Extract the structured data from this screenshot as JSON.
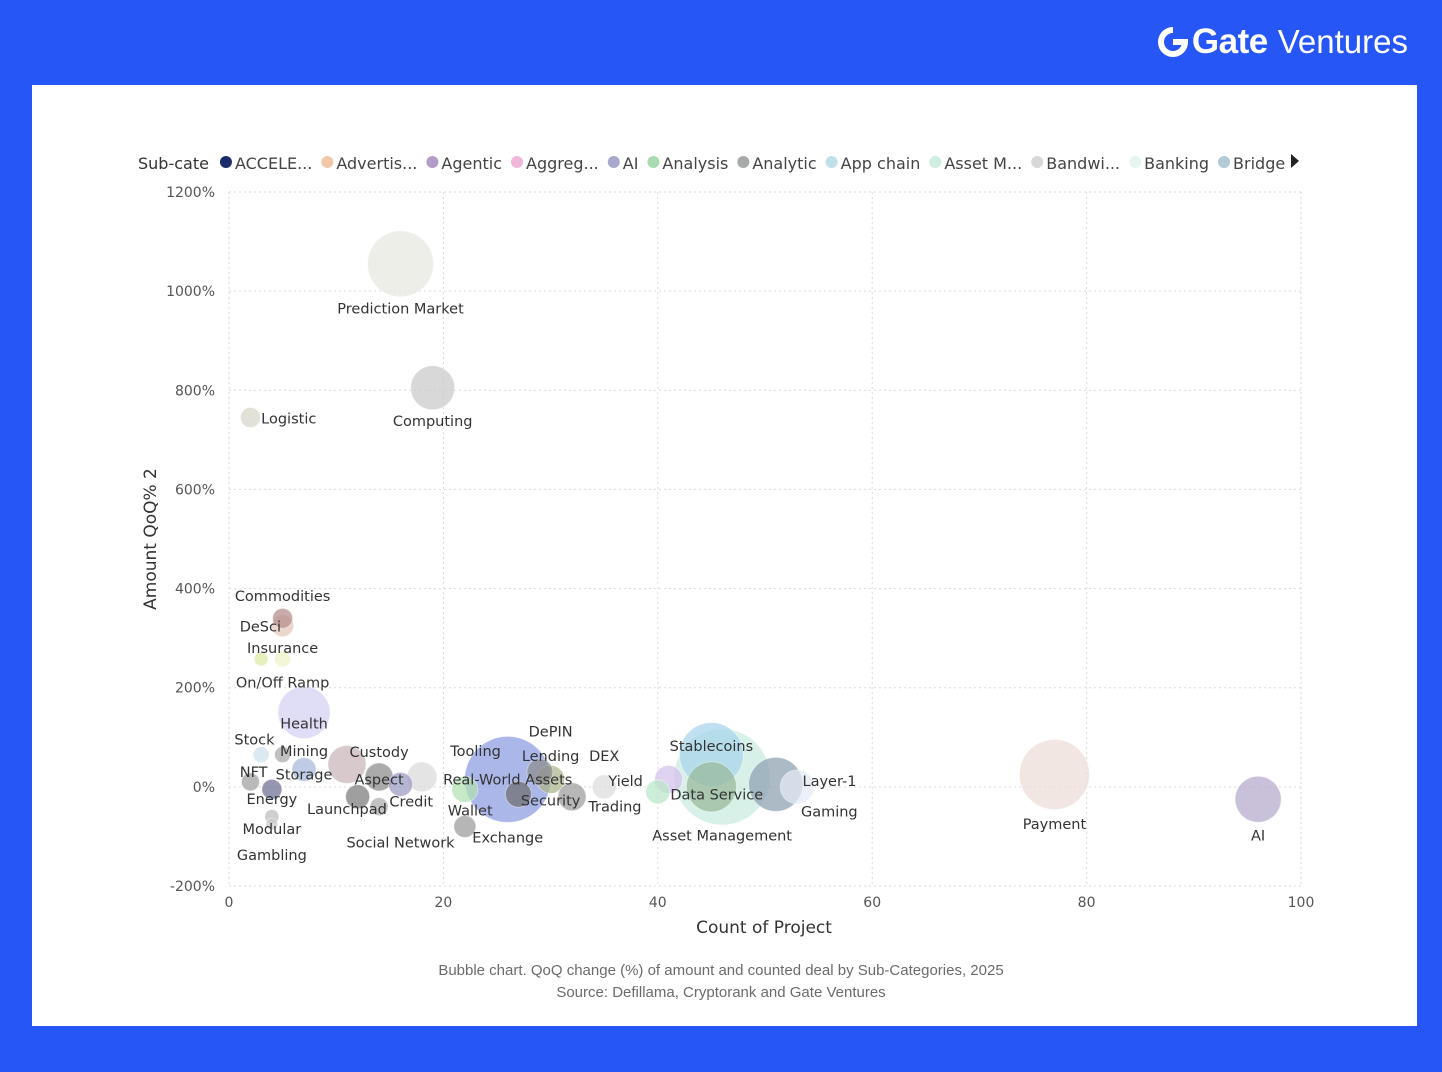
{
  "brand": {
    "name": "Gate",
    "sub": "Ventures"
  },
  "caption": {
    "line1": "Bubble chart. QoQ change (%) of amount and counted deal by Sub-Categories, 2025",
    "line2": "Source: Defillama, Cryptorank and Gate Ventures"
  },
  "chart_data": {
    "type": "scatter",
    "xlabel": "Count of Project",
    "ylabel": "Amount QoQ% 2",
    "xlim": [
      0,
      100
    ],
    "ylim": [
      -200,
      1200
    ],
    "xticks": [
      "0",
      "20",
      "40",
      "60",
      "80",
      "100"
    ],
    "yticks": [
      "-200%",
      "0%",
      "200%",
      "400%",
      "600%",
      "800%",
      "1000%",
      "1200%"
    ],
    "grid": true,
    "legend": {
      "title": "Sub-cate",
      "placement": "top",
      "items": [
        {
          "label": "ACCELE...",
          "color": "#1c2b6b"
        },
        {
          "label": "Advertis...",
          "color": "#f2c9a8"
        },
        {
          "label": "Agentic",
          "color": "#b39cc9"
        },
        {
          "label": "Aggreg...",
          "color": "#f0b8d8"
        },
        {
          "label": "AI",
          "color": "#a8a8cc"
        },
        {
          "label": "Analysis",
          "color": "#a8dcb0"
        },
        {
          "label": "Analytic",
          "color": "#a7aaa8"
        },
        {
          "label": "App chain",
          "color": "#bfe0ea"
        },
        {
          "label": "Asset M...",
          "color": "#cdeee0"
        },
        {
          "label": "Bandwi...",
          "color": "#d8d8d8"
        },
        {
          "label": "Banking",
          "color": "#e6f5ee"
        },
        {
          "label": "Bridge",
          "color": "#b4cad6"
        }
      ]
    },
    "points": [
      {
        "label": "Prediction Market",
        "x": 16,
        "y": 1055,
        "size": 33,
        "color": "#e7e7e0"
      },
      {
        "label": "Computing",
        "x": 19,
        "y": 805,
        "size": 22,
        "color": "#c9c9c9"
      },
      {
        "label": "Logistic",
        "x": 2,
        "y": 745,
        "size": 10,
        "color": "#d6d6c8"
      },
      {
        "label": "Commodities",
        "x": 5,
        "y": 340,
        "size": 10,
        "color": "#b58c8c"
      },
      {
        "label": "DeSci",
        "x": 5,
        "y": 325,
        "size": 11,
        "color": "#e2c6b6"
      },
      {
        "label": "Insurance",
        "x": 3,
        "y": 258,
        "size": 7,
        "color": "#ddeaa6"
      },
      {
        "label": "On/Off Ramp",
        "x": 5,
        "y": 258,
        "size": 8,
        "color": "#eef3c8"
      },
      {
        "label": "Health",
        "x": 7,
        "y": 150,
        "size": 26,
        "color": "#d4d0f2"
      },
      {
        "label": "Stock",
        "x": 3,
        "y": 65,
        "size": 8,
        "color": "#cfe0ea"
      },
      {
        "label": "Mining",
        "x": 5,
        "y": 65,
        "size": 8,
        "color": "#a8a8a8"
      },
      {
        "label": "Custody",
        "x": 11,
        "y": 45,
        "size": 19,
        "color": "#c8b4b8"
      },
      {
        "label": "NFT",
        "x": 2,
        "y": 10,
        "size": 9,
        "color": "#9f9f9f"
      },
      {
        "label": "Storage",
        "x": 7,
        "y": 35,
        "size": 12,
        "color": "#a7b8dc"
      },
      {
        "label": "Aspect",
        "x": 14,
        "y": 20,
        "size": 14,
        "color": "#8a8a8a"
      },
      {
        "label": "Energy",
        "x": 4,
        "y": -5,
        "size": 10,
        "color": "#6e6e96"
      },
      {
        "label": "Launchpad",
        "x": 12,
        "y": -20,
        "size": 12,
        "color": "#7a7a7a"
      },
      {
        "label": "Credit",
        "x": 16,
        "y": 5,
        "size": 12,
        "color": "#9a9ac0"
      },
      {
        "label": "Modular",
        "x": 4,
        "y": -60,
        "size": 7,
        "color": "#bbbbbb"
      },
      {
        "label": "Gambling",
        "x": 4,
        "y": -75,
        "size": 6,
        "color": "#cccccc"
      },
      {
        "label": "Tooling",
        "x": 18,
        "y": 20,
        "size": 15,
        "color": "#dadada"
      },
      {
        "label": "Real-World Assets",
        "x": 26,
        "y": 15,
        "size": 43,
        "color": "#8a9ae0"
      },
      {
        "label": "Wallet",
        "x": 22,
        "y": -5,
        "size": 13,
        "color": "#b0e0b0"
      },
      {
        "label": "Exchange",
        "x": 22,
        "y": -80,
        "size": 11,
        "color": "#9a9a9a"
      },
      {
        "label": "Social Network",
        "x": 14,
        "y": -40,
        "size": 9,
        "color": "#aaaaaa"
      },
      {
        "label": "DePIN",
        "x": 29,
        "y": 30,
        "size": 13,
        "color": "#8c8c8c"
      },
      {
        "label": "Lending",
        "x": 30,
        "y": 15,
        "size": 14,
        "color": "#a9b489"
      },
      {
        "label": "Security",
        "x": 27,
        "y": -15,
        "size": 13,
        "color": "#6e6e6e"
      },
      {
        "label": "Yield",
        "x": 32,
        "y": -20,
        "size": 14,
        "color": "#9b9b9b"
      },
      {
        "label": "DEX",
        "x": 35,
        "y": 0,
        "size": 12,
        "color": "#dcdcdc"
      },
      {
        "label": "Trading",
        "x": 40,
        "y": -10,
        "size": 12,
        "color": "#b8e6c8"
      },
      {
        "label": "Analysis",
        "x": 41,
        "y": 15,
        "size": 14,
        "color": "#d4c0ec"
      },
      {
        "label": "Stablecoins",
        "x": 45,
        "y": 65,
        "size": 32,
        "color": "#a8d4ec"
      },
      {
        "label": "Asset Management",
        "x": 46,
        "y": 20,
        "size": 48,
        "color": "#c8ece0"
      },
      {
        "label": "Data Service",
        "x": 45,
        "y": 0,
        "size": 25,
        "color": "#98b898"
      },
      {
        "label": "Layer-1",
        "x": 51,
        "y": 5,
        "size": 27,
        "color": "#8ca0b0"
      },
      {
        "label": "Gaming",
        "x": 53,
        "y": 0,
        "size": 17,
        "color": "#e4eaf6"
      },
      {
        "label": "Payment",
        "x": 77,
        "y": 25,
        "size": 35,
        "color": "#eddcd8"
      },
      {
        "label": "AI",
        "x": 96,
        "y": -25,
        "size": 23,
        "color": "#b4a8cc"
      }
    ],
    "labels": [
      {
        "text": "Prediction Market",
        "x": 16,
        "y": 955,
        "anchor": "middle"
      },
      {
        "text": "Computing",
        "x": 19,
        "y": 728,
        "anchor": "middle"
      },
      {
        "text": "Logistic",
        "x": 3,
        "y": 733,
        "anchor": "start"
      },
      {
        "text": "Commodities",
        "x": 5,
        "y": 375,
        "anchor": "middle"
      },
      {
        "text": "DeSci",
        "x": 1,
        "y": 313,
        "anchor": "start"
      },
      {
        "text": "Insurance",
        "x": 5,
        "y": 270,
        "anchor": "middle"
      },
      {
        "text": "On/Off Ramp",
        "x": 5,
        "y": 200,
        "anchor": "middle"
      },
      {
        "text": "Health",
        "x": 7,
        "y": 118,
        "anchor": "middle"
      },
      {
        "text": "Stock",
        "x": 0.5,
        "y": 85,
        "anchor": "start"
      },
      {
        "text": "Mining",
        "x": 7,
        "y": 62,
        "anchor": "middle"
      },
      {
        "text": "Custody",
        "x": 14,
        "y": 60,
        "anchor": "middle"
      },
      {
        "text": "NFT",
        "x": 1,
        "y": 20,
        "anchor": "start"
      },
      {
        "text": "Storage",
        "x": 7,
        "y": 15,
        "anchor": "middle"
      },
      {
        "text": "Aspect",
        "x": 14,
        "y": 5,
        "anchor": "middle"
      },
      {
        "text": "Energy",
        "x": 4,
        "y": -35,
        "anchor": "middle"
      },
      {
        "text": "Launchpad",
        "x": 11,
        "y": -55,
        "anchor": "middle"
      },
      {
        "text": "Credit",
        "x": 17,
        "y": -40,
        "anchor": "middle"
      },
      {
        "text": "Modular",
        "x": 4,
        "y": -95,
        "anchor": "middle"
      },
      {
        "text": "Gambling",
        "x": 4,
        "y": -148,
        "anchor": "middle"
      },
      {
        "text": "Tooling",
        "x": 23,
        "y": 62,
        "anchor": "middle"
      },
      {
        "text": "Real-World Assets",
        "x": 26,
        "y": 5,
        "anchor": "middle"
      },
      {
        "text": "Wallet",
        "x": 22.5,
        "y": -58,
        "anchor": "middle"
      },
      {
        "text": "Exchange",
        "x": 26,
        "y": -112,
        "anchor": "middle"
      },
      {
        "text": "Social Network",
        "x": 16,
        "y": -122,
        "anchor": "middle"
      },
      {
        "text": "DePIN",
        "x": 30,
        "y": 102,
        "anchor": "middle"
      },
      {
        "text": "Lending",
        "x": 30,
        "y": 52,
        "anchor": "middle"
      },
      {
        "text": "Security",
        "x": 30,
        "y": -38,
        "anchor": "middle"
      },
      {
        "text": "DEX",
        "x": 35,
        "y": 52,
        "anchor": "middle"
      },
      {
        "text": "Yield",
        "x": 37,
        "y": 2,
        "anchor": "middle"
      },
      {
        "text": "Trading",
        "x": 36,
        "y": -50,
        "anchor": "middle"
      },
      {
        "text": "Stablecoins",
        "x": 45,
        "y": 72,
        "anchor": "middle"
      },
      {
        "text": "Data Service",
        "x": 45.5,
        "y": -25,
        "anchor": "middle"
      },
      {
        "text": "Asset Management",
        "x": 46,
        "y": -108,
        "anchor": "middle"
      },
      {
        "text": "Layer-1",
        "x": 53.5,
        "y": 2,
        "anchor": "start"
      },
      {
        "text": "Gaming",
        "x": 56,
        "y": -60,
        "anchor": "middle"
      },
      {
        "text": "Payment",
        "x": 77,
        "y": -85,
        "anchor": "middle"
      },
      {
        "text": "AI",
        "x": 96,
        "y": -108,
        "anchor": "middle"
      }
    ]
  }
}
